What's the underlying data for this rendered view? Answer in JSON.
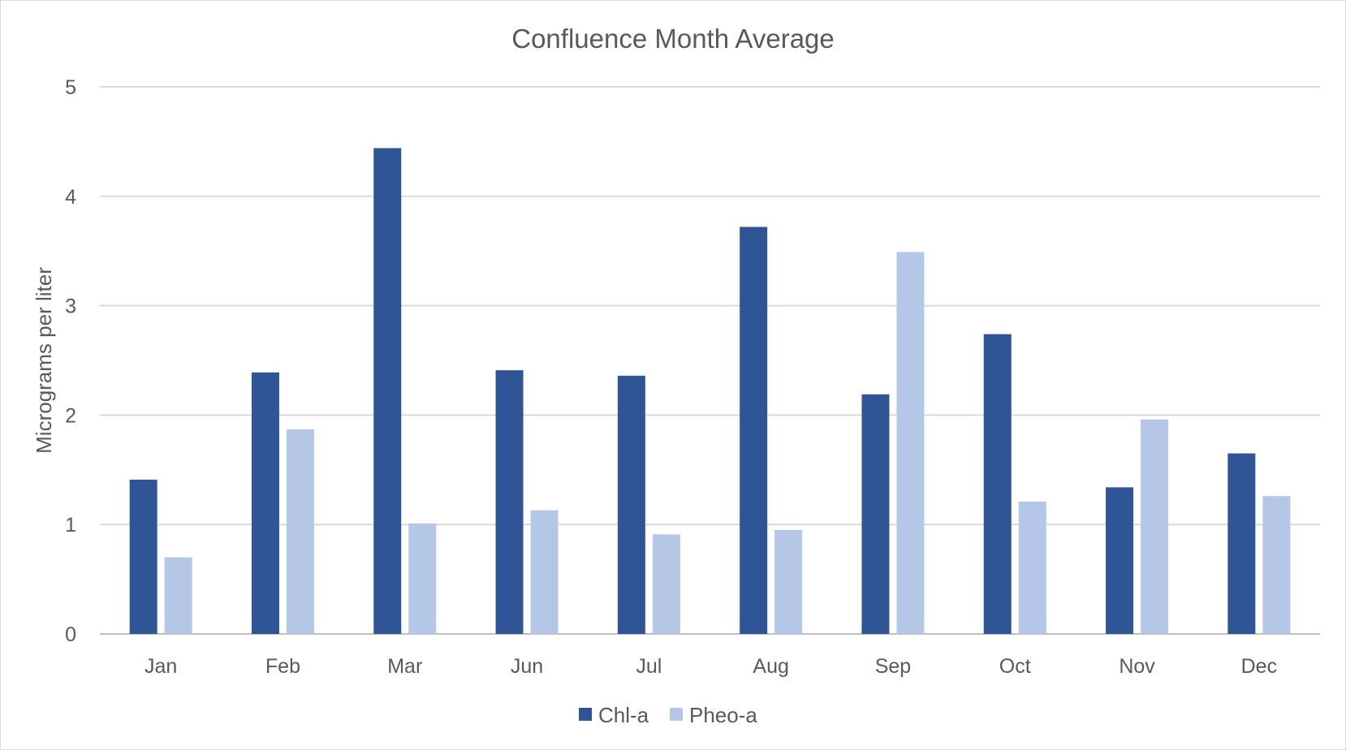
{
  "chart_data": {
    "type": "bar",
    "title": "Confluence Month Average",
    "xlabel": "",
    "ylabel": "Micrograms per liter",
    "ylim": [
      0,
      5
    ],
    "yticks": [
      0,
      1,
      2,
      3,
      4,
      5
    ],
    "grid": true,
    "legend_position": "bottom",
    "categories": [
      "Jan",
      "Feb",
      "Mar",
      "Jun",
      "Jul",
      "Aug",
      "Sep",
      "Oct",
      "Nov",
      "Dec"
    ],
    "series": [
      {
        "name": "Chl-a",
        "color": "#2f5597",
        "values": [
          1.41,
          2.39,
          4.44,
          2.41,
          2.36,
          3.72,
          2.19,
          2.74,
          1.34,
          1.65
        ]
      },
      {
        "name": "Pheo-a",
        "color": "#b4c7e7",
        "values": [
          0.7,
          1.87,
          1.01,
          1.13,
          0.91,
          0.95,
          3.49,
          1.21,
          1.96,
          1.26
        ]
      }
    ]
  }
}
